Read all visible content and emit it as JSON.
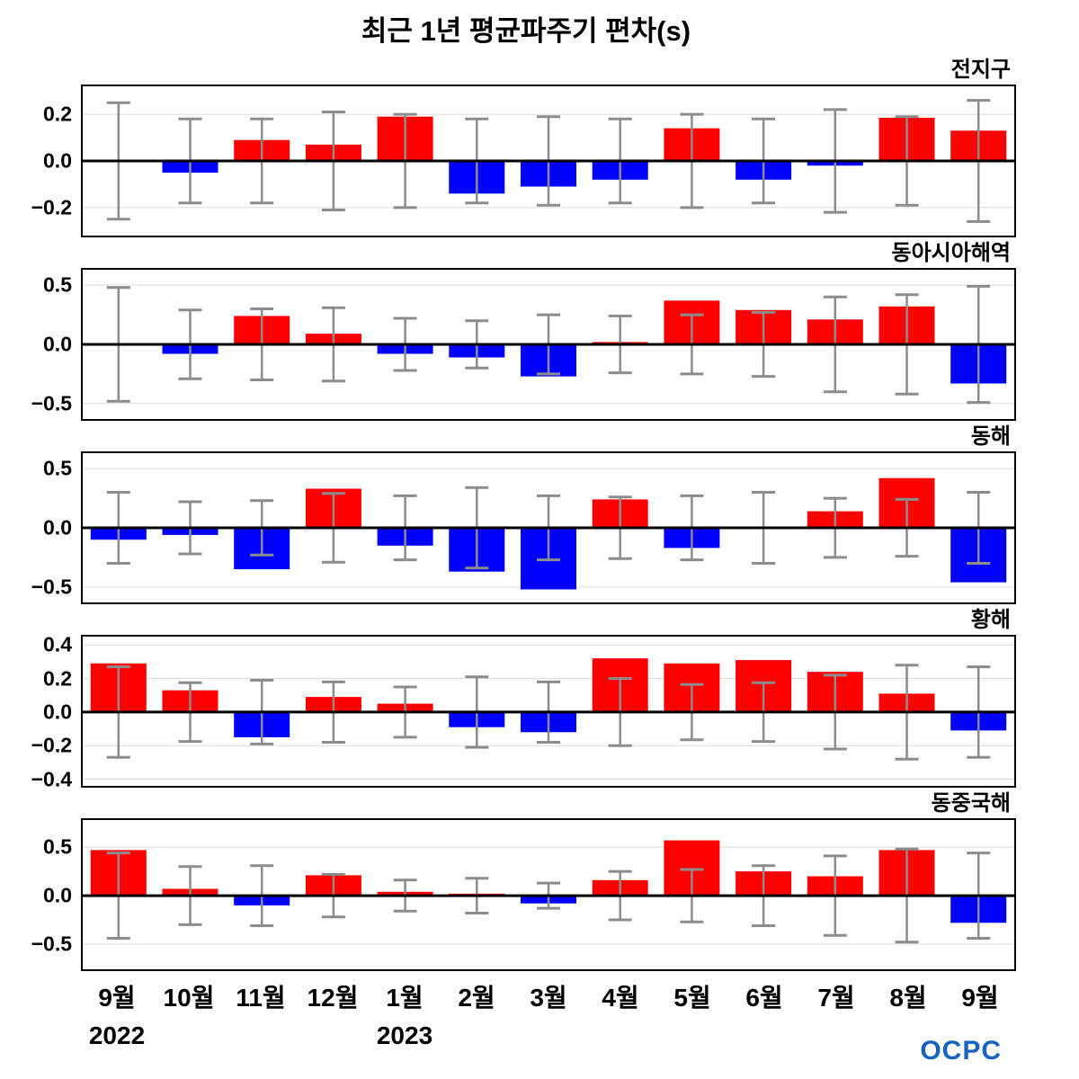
{
  "logo": "OCPC",
  "colors": {
    "positive": "#ff0000",
    "negative": "#0000ff",
    "error": "#8c8c8c",
    "zero_line": "#000000",
    "grid": "#dcdcdc"
  },
  "chart_data": {
    "type": "bar",
    "title": "최근 1년 평균파주기 편차(s)",
    "unit": "s",
    "categories": [
      "9월",
      "10월",
      "11월",
      "12월",
      "1월",
      "2월",
      "3월",
      "4월",
      "5월",
      "6월",
      "7월",
      "8월",
      "9월"
    ],
    "year_labels": [
      {
        "text": "2022",
        "slot": 0
      },
      {
        "text": "2023",
        "slot": 4
      }
    ],
    "error_bar_style": "gray whiskers symmetric about zero",
    "panels": [
      {
        "label": "전지구",
        "ylim": [
          -0.32,
          0.32
        ],
        "ticks": [
          0.2,
          0.0,
          -0.2
        ],
        "values": [
          0.005,
          -0.05,
          0.09,
          0.07,
          0.19,
          -0.14,
          -0.11,
          -0.08,
          0.14,
          -0.08,
          -0.02,
          0.185,
          0.13
        ],
        "err": [
          0.25,
          0.18,
          0.18,
          0.21,
          0.2,
          0.18,
          0.19,
          0.18,
          0.2,
          0.18,
          0.22,
          0.19,
          0.26
        ]
      },
      {
        "label": "동아시아해역",
        "ylim": [
          -0.63,
          0.63
        ],
        "ticks": [
          0.5,
          0.0,
          -0.5
        ],
        "values": [
          0.005,
          -0.08,
          0.24,
          0.09,
          -0.08,
          -0.11,
          -0.27,
          0.02,
          0.37,
          0.29,
          0.21,
          0.32,
          -0.33
        ],
        "err": [
          0.48,
          0.29,
          0.3,
          0.31,
          0.22,
          0.2,
          0.25,
          0.24,
          0.25,
          0.27,
          0.4,
          0.42,
          0.49
        ]
      },
      {
        "label": "동해",
        "ylim": [
          -0.63,
          0.63
        ],
        "ticks": [
          0.5,
          0.0,
          -0.5
        ],
        "values": [
          -0.1,
          -0.06,
          -0.35,
          0.33,
          -0.15,
          -0.37,
          -0.52,
          0.24,
          -0.17,
          -0.01,
          0.14,
          0.42,
          -0.46
        ],
        "err": [
          0.3,
          0.22,
          0.23,
          0.29,
          0.27,
          0.34,
          0.27,
          0.26,
          0.27,
          0.3,
          0.25,
          0.24,
          0.3
        ]
      },
      {
        "label": "황해",
        "ylim": [
          -0.44,
          0.45
        ],
        "ticks": [
          0.4,
          0.2,
          0.0,
          -0.2,
          -0.4
        ],
        "values": [
          0.29,
          0.13,
          -0.15,
          0.09,
          0.05,
          -0.09,
          -0.12,
          0.32,
          0.29,
          0.31,
          0.24,
          0.11,
          -0.11
        ],
        "err": [
          0.27,
          0.175,
          0.19,
          0.18,
          0.15,
          0.21,
          0.18,
          0.2,
          0.165,
          0.175,
          0.22,
          0.28,
          0.27
        ]
      },
      {
        "label": "동중국해",
        "ylim": [
          -0.76,
          0.78
        ],
        "ticks": [
          0.5,
          0.0,
          -0.5
        ],
        "values": [
          0.47,
          0.07,
          -0.1,
          0.21,
          0.04,
          0.02,
          -0.08,
          0.16,
          0.57,
          0.25,
          0.2,
          0.47,
          -0.28
        ],
        "err": [
          0.44,
          0.3,
          0.31,
          0.22,
          0.16,
          0.18,
          0.13,
          0.25,
          0.27,
          0.31,
          0.41,
          0.48,
          0.44
        ]
      }
    ]
  }
}
